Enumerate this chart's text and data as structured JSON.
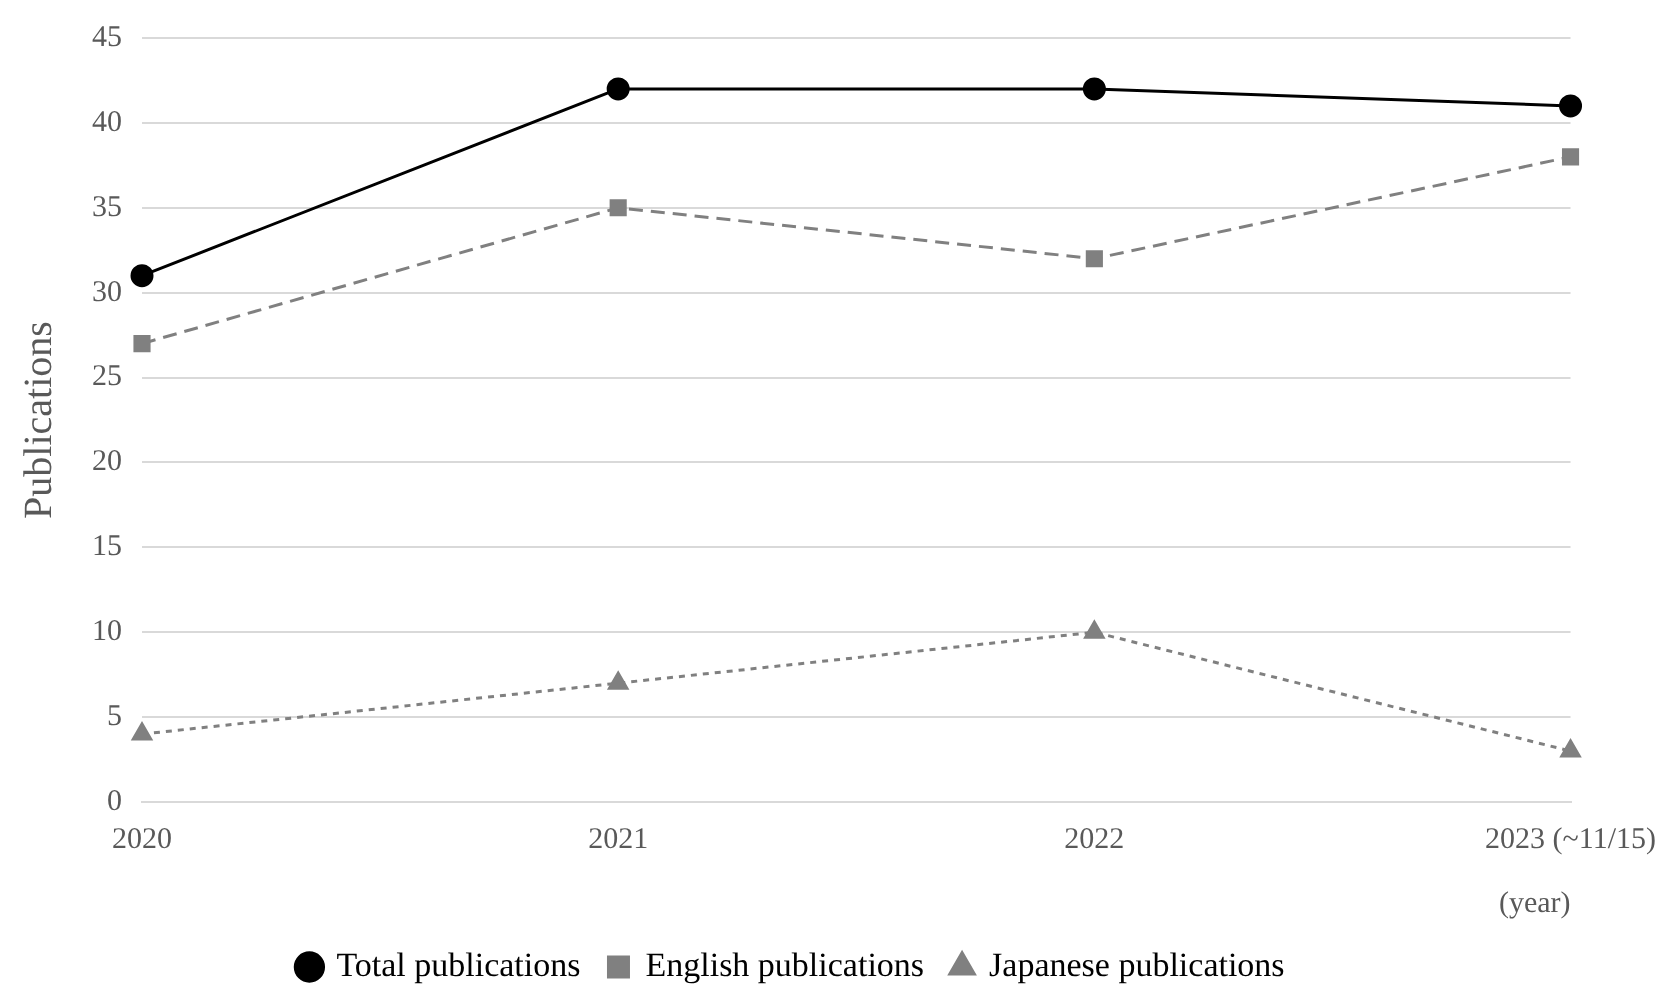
{
  "chart_data": {
    "type": "line",
    "ylabel": "Publications",
    "xlabel": "(year)",
    "categories": [
      "2020",
      "2021",
      "2022",
      "2023 (~11/15)"
    ],
    "ylim": [
      0,
      45
    ],
    "yticks": [
      0,
      5,
      10,
      15,
      20,
      25,
      30,
      35,
      40,
      45
    ],
    "grid": "y",
    "legend": "bottom",
    "series": [
      {
        "name": "Total publications",
        "color": "#000000",
        "values": [
          31,
          42,
          42,
          41
        ],
        "marker": "circle",
        "line_style": "solid"
      },
      {
        "name": "English publications",
        "color": "#808080",
        "values": [
          27,
          35,
          32,
          38
        ],
        "marker": "square",
        "line_style": "dashed"
      },
      {
        "name": "Japanese publications",
        "color": "#808080",
        "values": [
          4,
          7,
          10,
          3
        ],
        "marker": "triangle",
        "line_style": "dotted"
      }
    ]
  }
}
